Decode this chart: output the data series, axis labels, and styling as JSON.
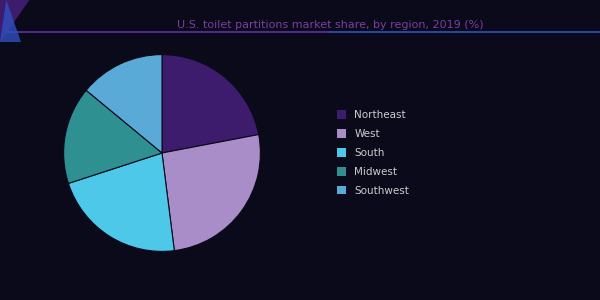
{
  "title": "U.S. toilet partitions market share, by region, 2019 (%)",
  "title_color": "#7b3fa0",
  "slices": [
    {
      "label": "Northeast",
      "value": 22.0,
      "color": "#3d1c6e"
    },
    {
      "label": "West",
      "value": 26.0,
      "color": "#a98dc8"
    },
    {
      "label": "South",
      "value": 22.0,
      "color": "#4dc8e8"
    },
    {
      "label": "Midwest",
      "value": 16.0,
      "color": "#2e9090"
    },
    {
      "label": "Southwest",
      "value": 14.0,
      "color": "#5aaad8"
    }
  ],
  "background_color": "#0a0a1a",
  "edge_color": "#0a0a1a",
  "legend_text_color": "#cccccc",
  "header_line_color": "#6030a0",
  "header_line_color2": "#3050c0",
  "triangle_color": "#3d1c6e",
  "triangle_color2": "#3050c0"
}
